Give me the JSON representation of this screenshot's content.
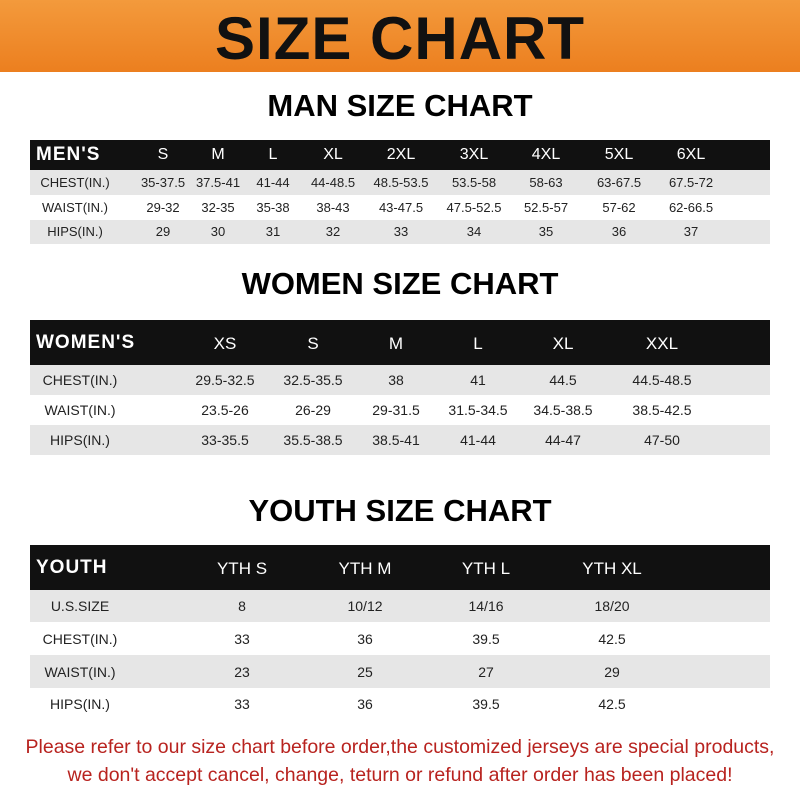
{
  "title": "SIZE CHART",
  "banner_color": "#ef8a2c",
  "tables": {
    "men": {
      "title": "MAN SIZE CHART",
      "header": "MEN'S",
      "sizes": [
        "S",
        "M",
        "L",
        "XL",
        "2XL",
        "3XL",
        "4XL",
        "5XL",
        "6XL"
      ],
      "rows": [
        {
          "label": "CHEST(IN.)",
          "values": [
            "35-37.5",
            "37.5-41",
            "41-44",
            "44-48.5",
            "48.5-53.5",
            "53.5-58",
            "58-63",
            "63-67.5",
            "67.5-72"
          ]
        },
        {
          "label": "WAIST(IN.)",
          "values": [
            "29-32",
            "32-35",
            "35-38",
            "38-43",
            "43-47.5",
            "47.5-52.5",
            "52.5-57",
            "57-62",
            "62-66.5"
          ]
        },
        {
          "label": "HIPS(IN.)",
          "values": [
            "29",
            "30",
            "31",
            "32",
            "33",
            "34",
            "35",
            "36",
            "37"
          ]
        }
      ]
    },
    "women": {
      "title": "WOMEN SIZE CHART",
      "header": "WOMEN'S",
      "sizes": [
        "XS",
        "S",
        "M",
        "L",
        "XL",
        "XXL"
      ],
      "rows": [
        {
          "label": "CHEST(IN.)",
          "values": [
            "29.5-32.5",
            "32.5-35.5",
            "38",
            "41",
            "44.5",
            "44.5-48.5"
          ]
        },
        {
          "label": "WAIST(IN.)",
          "values": [
            "23.5-26",
            "26-29",
            "29-31.5",
            "31.5-34.5",
            "34.5-38.5",
            "38.5-42.5"
          ]
        },
        {
          "label": "HIPS(IN.)",
          "values": [
            "33-35.5",
            "35.5-38.5",
            "38.5-41",
            "41-44",
            "44-47",
            "47-50"
          ]
        }
      ]
    },
    "youth": {
      "title": "YOUTH SIZE CHART",
      "header": "YOUTH",
      "sizes": [
        "YTH S",
        "YTH M",
        "YTH L",
        "YTH XL"
      ],
      "rows": [
        {
          "label": "U.S.SIZE",
          "values": [
            "8",
            "10/12",
            "14/16",
            "18/20"
          ]
        },
        {
          "label": "CHEST(IN.)",
          "values": [
            "33",
            "36",
            "39.5",
            "42.5"
          ]
        },
        {
          "label": "WAIST(IN.)",
          "values": [
            "23",
            "25",
            "27",
            "29"
          ]
        },
        {
          "label": "HIPS(IN.)",
          "values": [
            "33",
            "36",
            "39.5",
            "42.5"
          ]
        }
      ]
    }
  },
  "notice": {
    "line1": "Please refer to our size chart before order,the customized jerseys are special products,",
    "line2": "we don't accept cancel, change, teturn or refund after order has been placed!",
    "color": "#b8231f"
  }
}
